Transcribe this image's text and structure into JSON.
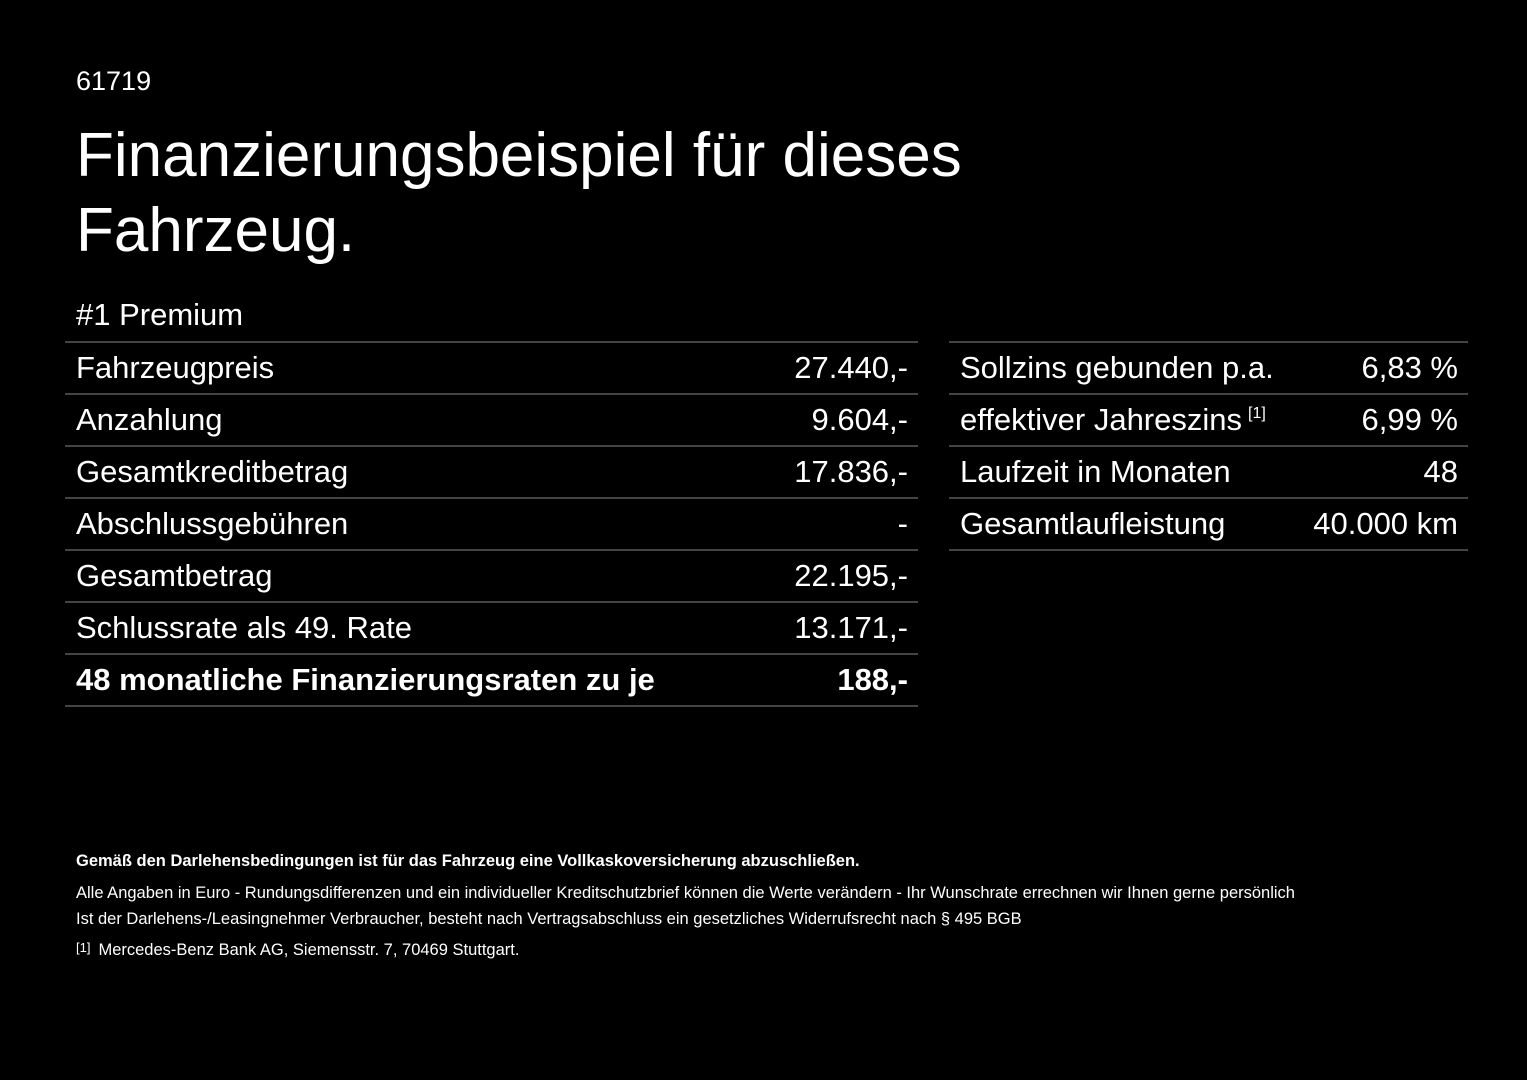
{
  "header": {
    "code": "61719",
    "title": "Finanzierungsbeispiel für dieses Fahrzeug."
  },
  "offer": {
    "label": "#1 Premium"
  },
  "left_table": {
    "rows": [
      [
        "Fahrzeugpreis",
        "27.440,-"
      ],
      [
        "Anzahlung",
        "9.604,-"
      ],
      [
        "Gesamtkreditbetrag",
        "17.836,-"
      ],
      [
        "Abschlussgebühren",
        "-"
      ],
      [
        "Gesamtbetrag",
        "22.195,-"
      ],
      [
        "Schlussrate als 49. Rate",
        "13.171,-"
      ],
      [
        "48 monatliche Finanzierungsraten zu je",
        "188,-"
      ]
    ]
  },
  "right_table": {
    "rows": [
      {
        "label": "Sollzins gebunden p.a.",
        "value": "6,83 %"
      },
      {
        "label": "effektiver Jahreszins",
        "note": "[1]",
        "value": "6,99 %"
      },
      {
        "label": "Laufzeit in Monaten",
        "value": "48"
      },
      {
        "label": "Gesamtlaufleistung",
        "value": "40.000 km"
      }
    ]
  },
  "footer": {
    "notice": "Gemäß den Darlehensbedingungen ist für das Fahrzeug eine Vollkaskoversicherung abzuschließen.",
    "lines": [
      "Alle Angaben in Euro - Rundungsdifferenzen und ein individueller Kreditschutzbrief können die Werte verändern - Ihr Wunschrate errechnen wir Ihnen gerne persönlich",
      "Ist der Darlehens-/Leasingnehmer Verbraucher, besteht nach Vertragsabschluss ein gesetzliches Widerrufsrecht nach § 495 BGB"
    ],
    "footnote": {
      "marker": "[1]",
      "text": "Mercedes-Benz Bank AG, Siemensstr. 7, 70469 Stuttgart."
    }
  }
}
